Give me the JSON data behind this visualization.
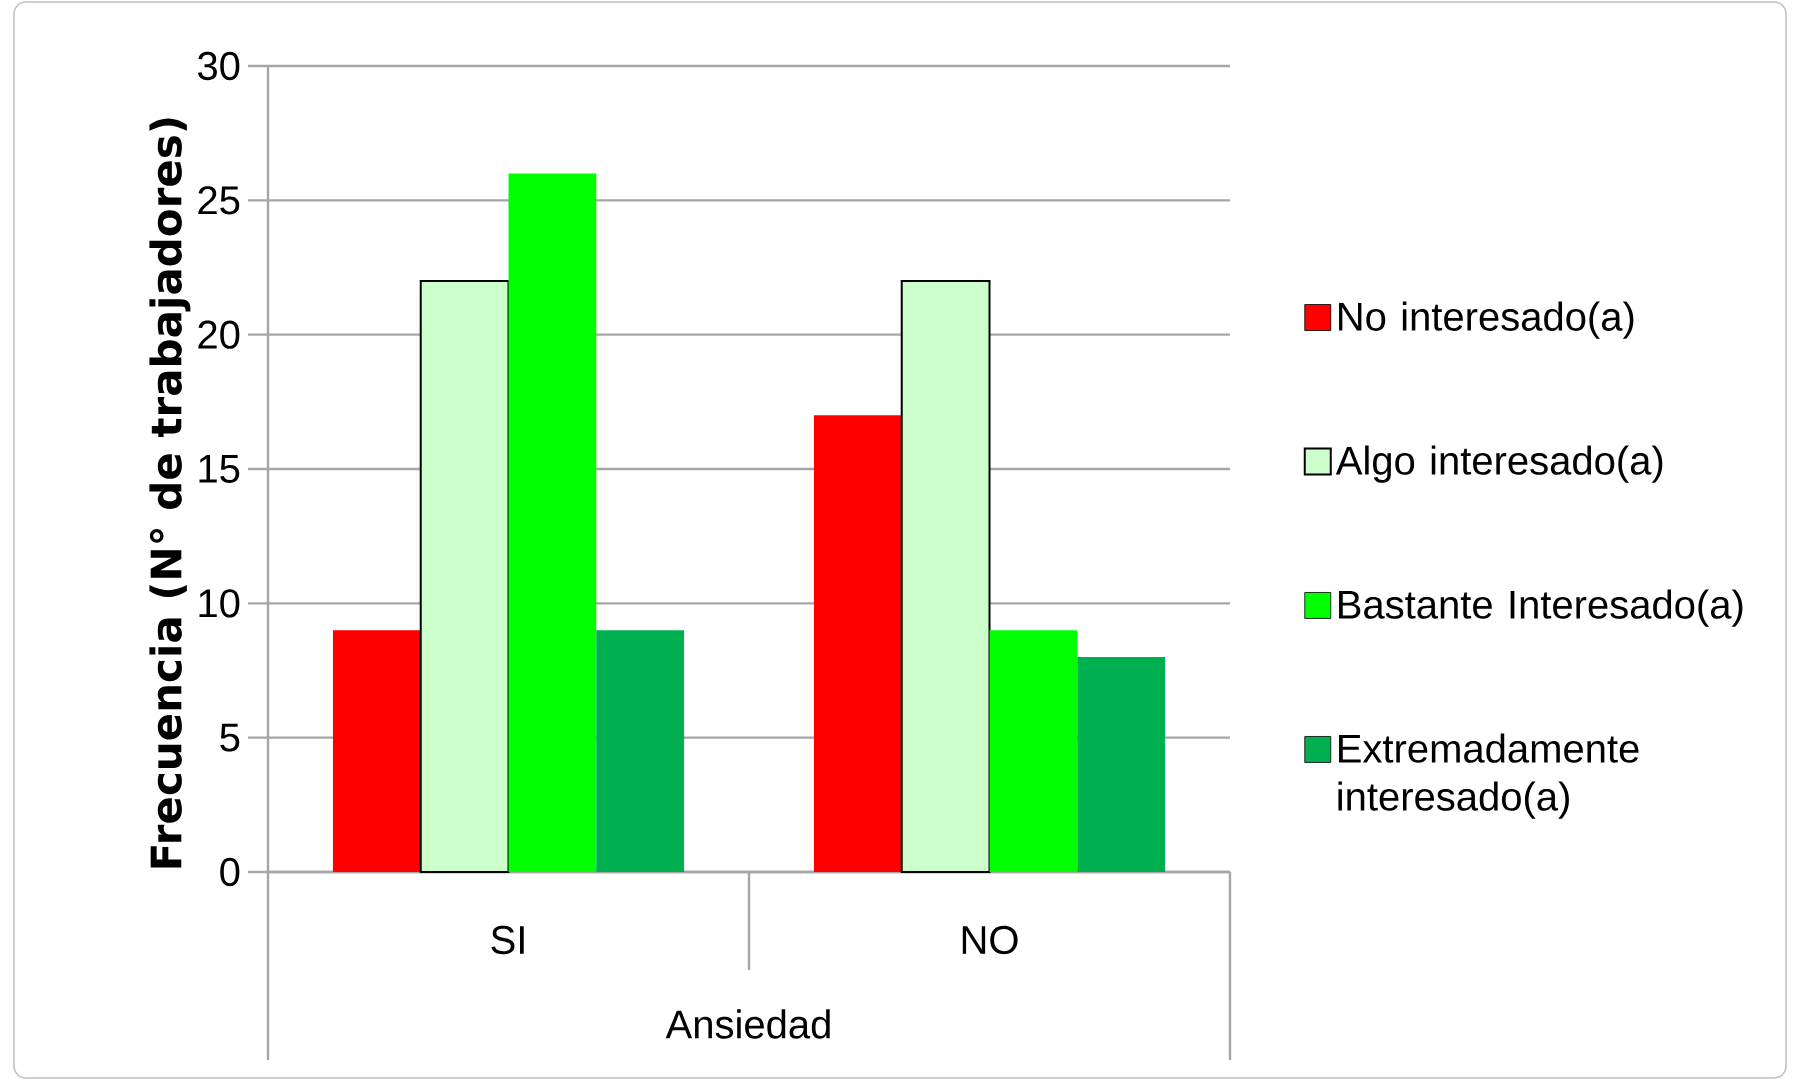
{
  "chart_data": {
    "type": "bar",
    "xlabel": "Ansiedad",
    "ylabel": "Frecuencia (N° de trabajadores)",
    "categories": [
      "SI",
      "NO"
    ],
    "series": [
      {
        "name": "No interesado(a)",
        "color": "#ff0000",
        "values": [
          9,
          17
        ]
      },
      {
        "name": "Algo interesado(a)",
        "color": "#ccffcc",
        "values": [
          22,
          22
        ]
      },
      {
        "name": "Bastante Interesado(a)",
        "color": "#00ff00",
        "values": [
          26,
          9
        ]
      },
      {
        "name": "Extremadamente interesado(a)",
        "color": "#00b050",
        "values": [
          9,
          8
        ]
      }
    ],
    "ylim": [
      0,
      30
    ],
    "yticks": [
      0,
      5,
      10,
      15,
      20,
      25,
      30
    ],
    "grid": "y",
    "legend": "right"
  }
}
